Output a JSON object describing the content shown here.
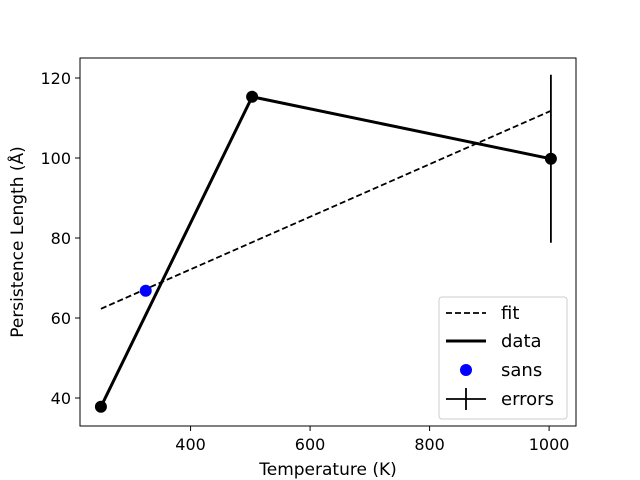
{
  "chart_data": {
    "type": "line",
    "title": "",
    "xlabel": "Temperature (K)",
    "ylabel": "Persistence Length (Å)",
    "xlim": [
      215,
      1045
    ],
    "ylim": [
      33,
      125
    ],
    "xticks": [
      400,
      600,
      800,
      1000
    ],
    "yticks": [
      40,
      60,
      80,
      100,
      120
    ],
    "grid": false,
    "legend_position": "lower-right",
    "series": [
      {
        "name": "fit",
        "style": "dashed",
        "color": "#000000",
        "x": [
          250,
          1003
        ],
        "y": [
          62.3,
          111.8
        ]
      },
      {
        "name": "data",
        "style": "solid",
        "color": "#000000",
        "x": [
          250,
          503,
          1003
        ],
        "y": [
          37.8,
          115.3,
          99.8
        ]
      },
      {
        "name": "sans",
        "style": "marker",
        "color": "#0000ff",
        "x": [
          325
        ],
        "y": [
          66.8
        ]
      },
      {
        "name": "errors",
        "style": "errorbar",
        "color": "#000000",
        "x": [
          250,
          503,
          1003
        ],
        "y": [
          37.8,
          115.3,
          99.8
        ],
        "yerr": [
          0,
          1,
          21
        ]
      }
    ]
  }
}
